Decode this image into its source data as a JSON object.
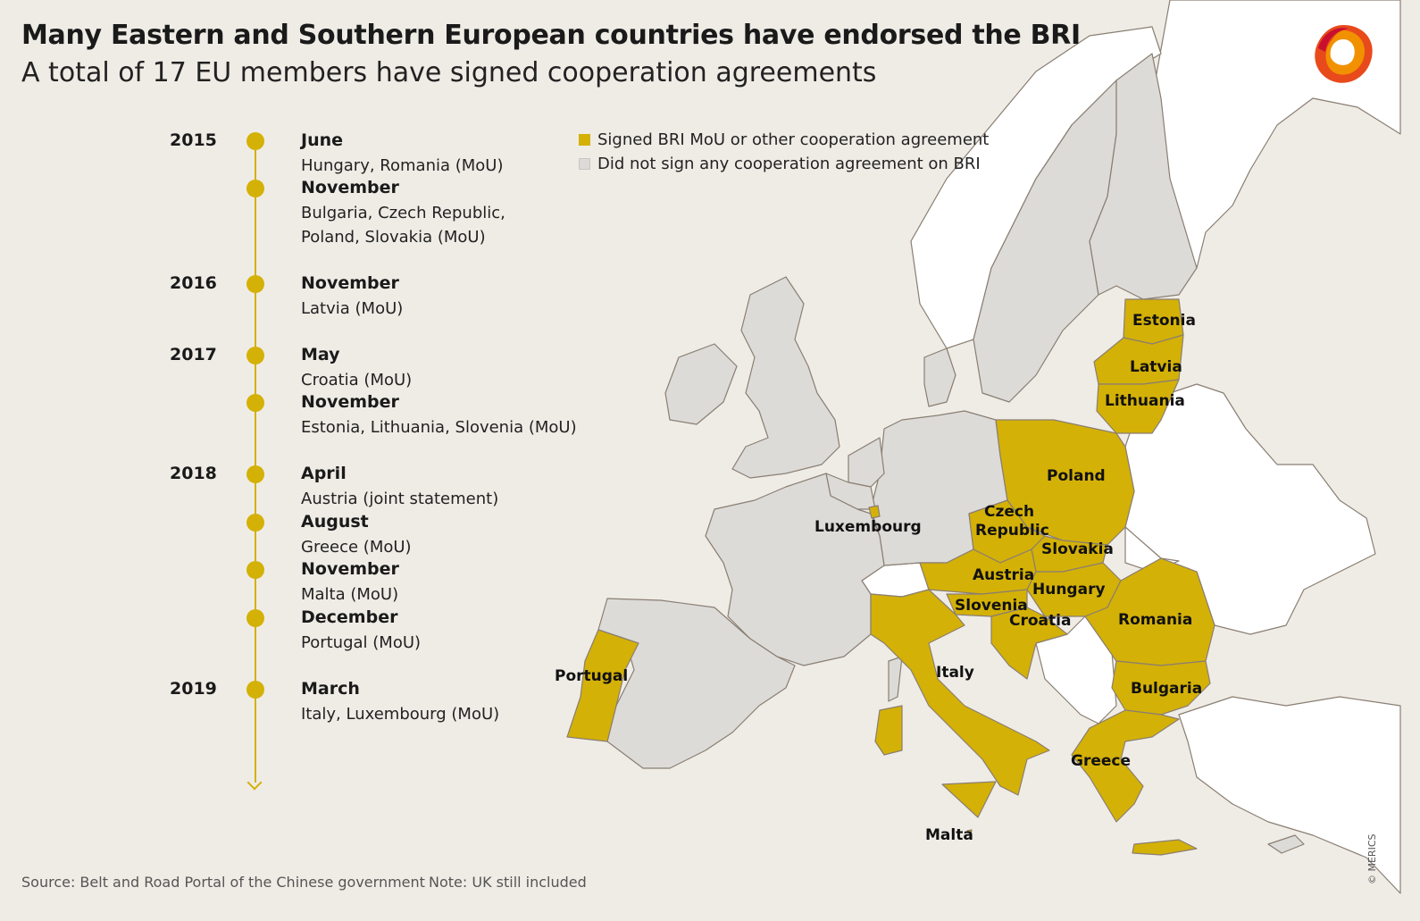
{
  "title": "Many Eastern and Southern European countries have endorsed the BRI",
  "subtitle": "A total of 17 EU members have signed cooperation agreements",
  "colors": {
    "signed": "#d4b106",
    "not_signed": "#dcdbd8",
    "non_eu": "#ffffff",
    "border": "#8a7e72",
    "background": "#efece6"
  },
  "legend": {
    "signed": "Signed BRI MoU or other cooperation agreement",
    "not_signed": "Did not sign any cooperation agreement on BRI"
  },
  "timeline": [
    {
      "year": "2015",
      "month": "June",
      "text": [
        "Hungary, Romania (MoU)"
      ]
    },
    {
      "year": "",
      "month": "November",
      "text": [
        "Bulgaria, Czech Republic,",
        "Poland, Slovakia (MoU)"
      ]
    },
    {
      "year": "2016",
      "month": "November",
      "text": [
        "Latvia (MoU)"
      ]
    },
    {
      "year": "2017",
      "month": "May",
      "text": [
        "Croatia (MoU)"
      ]
    },
    {
      "year": "",
      "month": "November",
      "text": [
        "Estonia, Lithuania, Slovenia (MoU)"
      ]
    },
    {
      "year": "2018",
      "month": "April",
      "text": [
        "Austria (joint statement)"
      ]
    },
    {
      "year": "",
      "month": "August",
      "text": [
        "Greece (MoU)"
      ]
    },
    {
      "year": "",
      "month": "November",
      "text": [
        "Malta (MoU)"
      ]
    },
    {
      "year": "",
      "month": "December",
      "text": [
        "Portugal (MoU)"
      ]
    },
    {
      "year": "2019",
      "month": "March",
      "text": [
        "Italy, Luxembourg (MoU)"
      ]
    }
  ],
  "countries": {
    "estonia": {
      "label": "Estonia",
      "status": "signed"
    },
    "latvia": {
      "label": "Latvia",
      "status": "signed"
    },
    "lithuania": {
      "label": "Lithuania",
      "status": "signed"
    },
    "poland": {
      "label": "Poland",
      "status": "signed"
    },
    "czech": {
      "label": [
        "Czech",
        "Republic"
      ],
      "status": "signed"
    },
    "slovakia": {
      "label": "Slovakia",
      "status": "signed"
    },
    "austria": {
      "label": "Austria",
      "status": "signed"
    },
    "hungary": {
      "label": "Hungary",
      "status": "signed"
    },
    "slovenia": {
      "label": "Slovenia",
      "status": "signed"
    },
    "croatia": {
      "label": "Croatia",
      "status": "signed"
    },
    "romania": {
      "label": "Romania",
      "status": "signed"
    },
    "bulgaria": {
      "label": "Bulgaria",
      "status": "signed"
    },
    "greece": {
      "label": "Greece",
      "status": "signed"
    },
    "italy": {
      "label": "Italy",
      "status": "signed"
    },
    "portugal": {
      "label": "Portugal",
      "status": "signed"
    },
    "luxembourg": {
      "label": "Luxembourg",
      "status": "signed"
    },
    "malta": {
      "label": "Malta",
      "status": "signed"
    }
  },
  "footer": {
    "source": "Source: Belt and Road Portal of the Chinese government",
    "note": "Note: UK still included",
    "credit": "© MERICS"
  }
}
